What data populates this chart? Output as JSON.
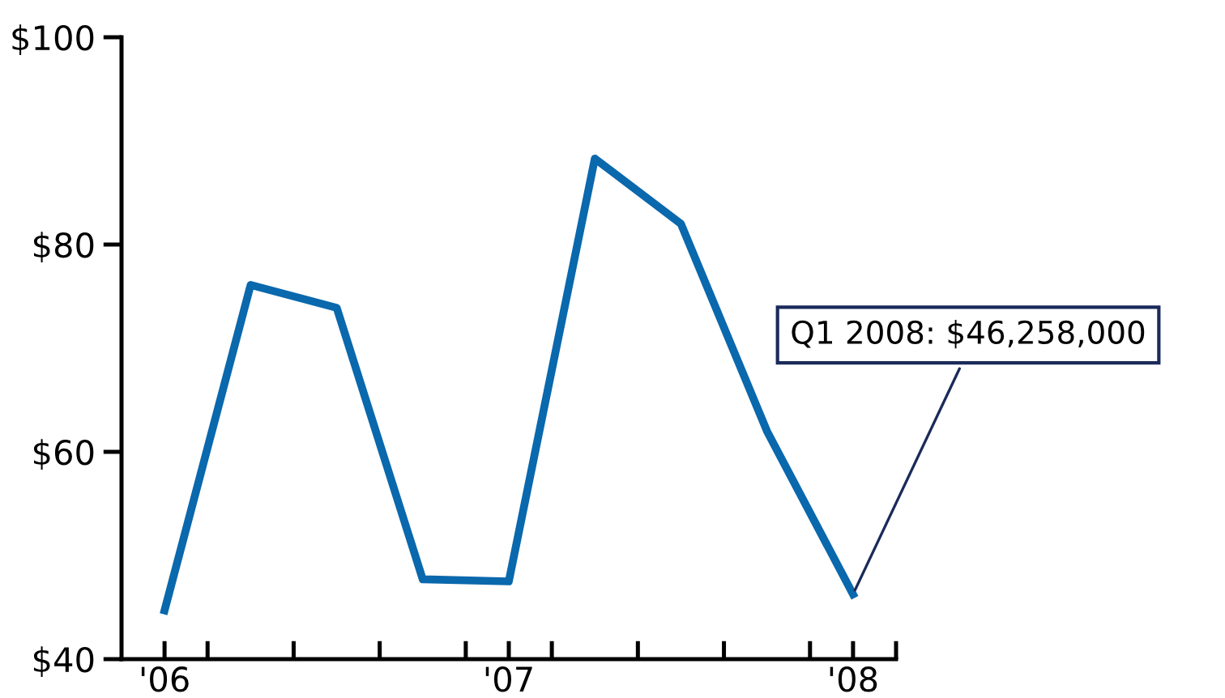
{
  "chart_data": {
    "type": "line",
    "x": [
      2006,
      2006.25,
      2006.5,
      2006.75,
      2007,
      2007.25,
      2007.5,
      2007.75,
      2008
    ],
    "series": [
      {
        "color": "#0a68ad",
        "values": [
          44.7,
          76.1,
          73.9,
          47.7,
          47.5,
          88.3,
          82.0,
          62.0,
          46.258
        ]
      }
    ],
    "xlim": [
      2005.875,
      2008.125
    ],
    "xticks": [
      {
        "value": 2006,
        "label": "'06"
      },
      {
        "value": 2006.125,
        "label": null
      },
      {
        "value": 2006.375,
        "label": null
      },
      {
        "value": 2006.625,
        "label": null
      },
      {
        "value": 2006.875,
        "label": null
      },
      {
        "value": 2007,
        "label": "'07"
      },
      {
        "value": 2007.125,
        "label": null
      },
      {
        "value": 2007.375,
        "label": null
      },
      {
        "value": 2007.625,
        "label": null
      },
      {
        "value": 2007.875,
        "label": null
      },
      {
        "value": 2008,
        "label": "'08"
      },
      {
        "value": 2008.125,
        "label": null
      }
    ],
    "ylim": [
      40,
      100
    ],
    "yticks": [
      {
        "value": 40,
        "label": "$40"
      },
      {
        "value": 60,
        "label": "$60"
      },
      {
        "value": 80,
        "label": "$80"
      },
      {
        "value": 100,
        "label": "$100"
      }
    ],
    "grid": false,
    "legend": false,
    "marker": "none",
    "line_style": "solid",
    "annotations": [
      {
        "text": "Q1 2008: $46,258,000",
        "x": 2008,
        "y": 46.258
      }
    ]
  }
}
